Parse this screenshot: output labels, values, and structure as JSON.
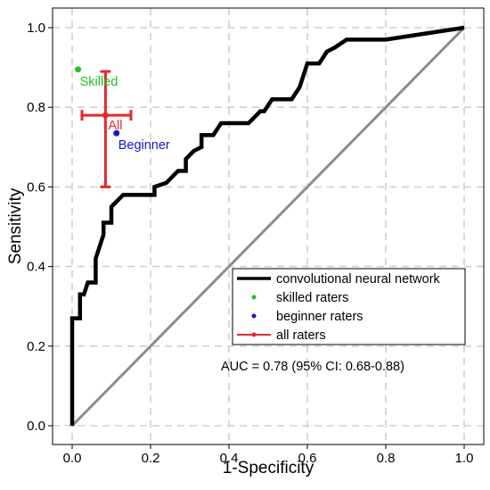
{
  "chart_data": {
    "type": "line",
    "xlabel": "1-Specificity",
    "ylabel": "Sensitivity",
    "xlim": [
      0.0,
      1.0
    ],
    "ylim": [
      0.0,
      1.0
    ],
    "xticks": [
      "0.0",
      "0.2",
      "0.4",
      "0.6",
      "0.8",
      "1.0"
    ],
    "yticks": [
      "0.0",
      "0.2",
      "0.4",
      "0.6",
      "0.8",
      "1.0"
    ],
    "grid": true,
    "legend_position": "bottom-right",
    "series": [
      {
        "name": "convolutional neural network",
        "color": "#000000",
        "x": [
          0.0,
          0.0,
          0.0,
          0.0,
          0.01,
          0.02,
          0.02,
          0.03,
          0.04,
          0.05,
          0.06,
          0.06,
          0.07,
          0.08,
          0.08,
          0.1,
          0.1,
          0.11,
          0.12,
          0.13,
          0.15,
          0.17,
          0.21,
          0.21,
          0.24,
          0.24,
          0.27,
          0.27,
          0.29,
          0.29,
          0.31,
          0.33,
          0.33,
          0.36,
          0.36,
          0.38,
          0.42,
          0.42,
          0.45,
          0.45,
          0.48,
          0.49,
          0.51,
          0.56,
          0.56,
          0.58,
          0.58,
          0.6,
          0.61,
          0.63,
          0.65,
          0.65,
          0.67,
          0.7,
          0.72,
          0.8,
          1.0
        ],
        "y": [
          0.0,
          0.2,
          0.27,
          0.27,
          0.27,
          0.27,
          0.33,
          0.33,
          0.36,
          0.36,
          0.36,
          0.42,
          0.45,
          0.48,
          0.51,
          0.51,
          0.55,
          0.56,
          0.57,
          0.58,
          0.58,
          0.58,
          0.58,
          0.6,
          0.61,
          0.61,
          0.64,
          0.64,
          0.64,
          0.67,
          0.69,
          0.7,
          0.73,
          0.73,
          0.73,
          0.76,
          0.76,
          0.76,
          0.76,
          0.76,
          0.79,
          0.79,
          0.82,
          0.82,
          0.82,
          0.85,
          0.85,
          0.91,
          0.91,
          0.91,
          0.94,
          0.94,
          0.95,
          0.97,
          0.97,
          0.97,
          1.0
        ]
      },
      {
        "name": "",
        "color": "#8c8c8c",
        "x": [
          0.0,
          1.0
        ],
        "y": [
          0.0,
          1.0
        ]
      }
    ],
    "points": [
      {
        "name": "skilled raters",
        "label": "Skilled",
        "x": 0.015,
        "y": 0.895,
        "color": "#1fc41f"
      },
      {
        "name": "beginner raters",
        "label": "Beginner",
        "x": 0.113,
        "y": 0.735,
        "color": "#1515d6"
      }
    ],
    "errorbar_point": {
      "name": "all raters",
      "label": "All",
      "x": 0.085,
      "y": 0.78,
      "x_err": [
        0.025,
        0.15
      ],
      "y_err": [
        0.6,
        0.89
      ],
      "color": "#e8272a"
    },
    "legend": [
      {
        "label": "convolutional neural network",
        "kind": "line",
        "color": "#000000"
      },
      {
        "label": "skilled raters",
        "kind": "dot",
        "color": "#1fc41f"
      },
      {
        "label": "beginner raters",
        "kind": "dot",
        "color": "#1515d6"
      },
      {
        "label": "all raters",
        "kind": "errorbar",
        "color": "#e8272a"
      }
    ],
    "annotation": "AUC = 0.78 (95% CI: 0.68-0.88)"
  }
}
